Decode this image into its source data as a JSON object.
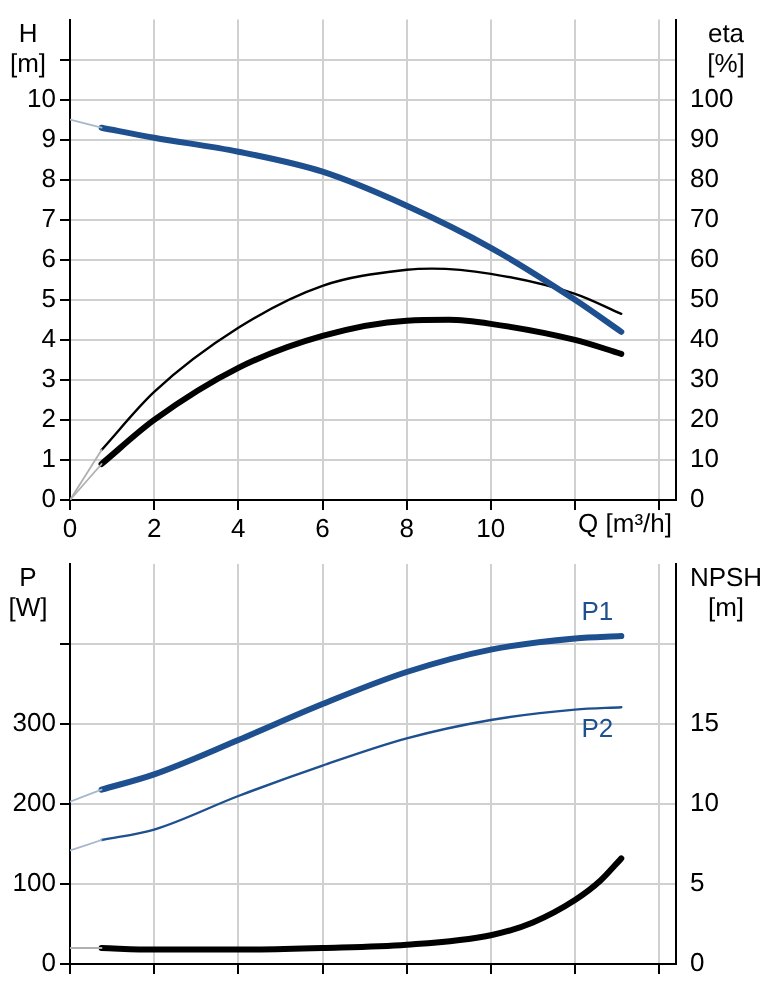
{
  "chart_data": [
    {
      "type": "line",
      "xlabel": "Q [m³/h]",
      "ylabel": "H [m]",
      "y2label": "eta [%]",
      "xlim": [
        0,
        14.4
      ],
      "xticks": [
        0,
        2,
        4,
        6,
        8,
        10,
        {
          "value": 12,
          "label": null
        },
        {
          "value": 14,
          "label": null
        }
      ],
      "ylim": [
        0,
        12
      ],
      "yticks": [
        0,
        1,
        2,
        3,
        4,
        5,
        6,
        7,
        8,
        9,
        10,
        {
          "value": 11,
          "label": null
        }
      ],
      "y2lim": [
        0,
        120
      ],
      "y2ticks": [
        0,
        10,
        20,
        30,
        40,
        50,
        60,
        70,
        80,
        90,
        100,
        {
          "value": 110,
          "label": null
        }
      ],
      "grid": true,
      "legend": false,
      "marker": "none",
      "series": [
        {
          "color": "#a8b8cc",
          "x": [
            0,
            0.75
          ],
          "values": [
            9.5,
            9.3
          ]
        },
        {
          "color": "#b0b0b0",
          "axis": "y2",
          "x": [
            0,
            0.75
          ],
          "values": [
            0,
            12.5
          ]
        },
        {
          "color": "#b0b0b0",
          "axis": "y2",
          "x": [
            0,
            0.75
          ],
          "values": [
            0,
            9
          ]
        },
        {
          "color": "#1e4f8f",
          "x": [
            0.75,
            2,
            4,
            6,
            8,
            10,
            12,
            13.1
          ],
          "values": [
            9.3,
            9.05,
            8.7,
            8.2,
            7.35,
            6.3,
            5.0,
            4.2
          ]
        },
        {
          "color": "#000000",
          "axis": "y2",
          "x": [
            0.75,
            2,
            4,
            6,
            8,
            8.6,
            10,
            12,
            13.1
          ],
          "values": [
            12.5,
            27,
            43,
            53.5,
            57.5,
            57.8,
            56.5,
            51.5,
            46.5
          ]
        },
        {
          "color": "#000000",
          "axis": "y2",
          "x": [
            0.75,
            2,
            4,
            6,
            8,
            9,
            10,
            12,
            13.1
          ],
          "values": [
            9,
            20,
            33,
            41,
            44.8,
            45,
            44,
            40,
            36.5
          ]
        }
      ]
    },
    {
      "type": "line",
      "ylabel": "P [W]",
      "y2label": "NPSH [m]",
      "tick_labels": "y",
      "xlim": [
        0,
        14.4
      ],
      "xticks": [
        0,
        2,
        4,
        6,
        8,
        10,
        12,
        14
      ],
      "ylim": [
        0,
        500
      ],
      "yticks": [
        0,
        100,
        200,
        300,
        {
          "value": 400,
          "label": null
        }
      ],
      "y2lim": [
        0,
        25
      ],
      "y2ticks": [
        0,
        5,
        10,
        15,
        {
          "value": 20,
          "label": null
        }
      ],
      "grid": true,
      "legend": false,
      "marker": "none",
      "series": [
        {
          "color": "#a8b8cc",
          "x": [
            0,
            0.75
          ],
          "values": [
            203,
            218
          ]
        },
        {
          "color": "#a8b8cc",
          "x": [
            0,
            0.75
          ],
          "values": [
            142,
            155
          ]
        },
        {
          "color": "#b0b0b0",
          "axis": "y2",
          "x": [
            0,
            0.75
          ],
          "values": [
            1.0,
            1.0
          ]
        },
        {
          "name": "P1",
          "color": "#1e4f8f",
          "x": [
            0.75,
            2,
            4,
            6,
            8,
            10,
            12,
            13.1
          ],
          "values": [
            218,
            237,
            280,
            325,
            365,
            393,
            407,
            410
          ]
        },
        {
          "name": "P2",
          "color": "#1e4f8f",
          "x": [
            0.75,
            2,
            4,
            6,
            8,
            10,
            12,
            13.1
          ],
          "values": [
            155,
            168,
            210,
            248,
            282,
            305,
            318,
            321
          ]
        },
        {
          "color": "#000000",
          "axis": "y2",
          "x": [
            0.75,
            2,
            4,
            6,
            8,
            10,
            11,
            12,
            12.6,
            13.1
          ],
          "values": [
            1.0,
            0.9,
            0.9,
            1.0,
            1.2,
            1.8,
            2.6,
            4.0,
            5.2,
            6.6
          ]
        }
      ]
    }
  ]
}
